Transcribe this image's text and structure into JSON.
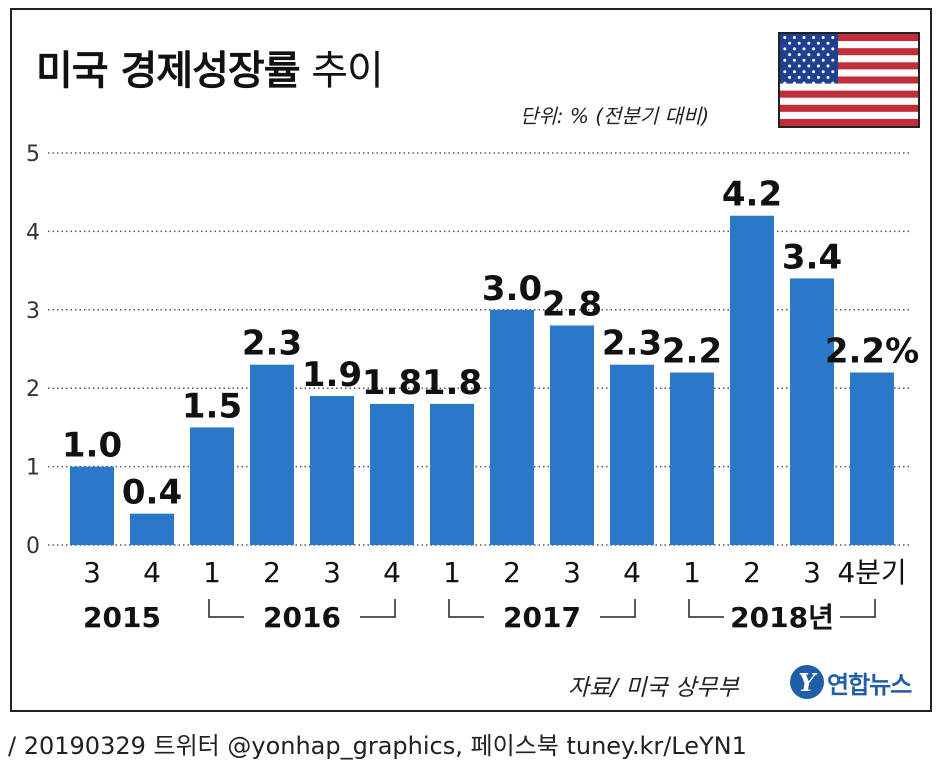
{
  "header": {
    "title_bold": "미국 경제성장률",
    "title_light": "추이",
    "unit": "단위: % (전분기 대비)"
  },
  "flag": {
    "name": "us-flag-icon",
    "red": "#bf2f3a",
    "white": "#ffffff",
    "blue": "#1f3f8f"
  },
  "chart_data": {
    "type": "bar",
    "title": "미국 경제성장률 추이",
    "ylabel": "단위: % (전분기 대비)",
    "ylim": [
      0,
      5
    ],
    "yticks": [
      "0",
      "1",
      "2",
      "3",
      "4",
      "5"
    ],
    "grid": true,
    "bar_color": "#2979c8",
    "categories": [
      "2015 3",
      "2015 4",
      "2016 1",
      "2016 2",
      "2016 3",
      "2016 4",
      "2017 1",
      "2017 2",
      "2017 3",
      "2017 4",
      "2018 1",
      "2018 2",
      "2018 3",
      "2018 4분기"
    ],
    "tick_labels": [
      "3",
      "4",
      "1",
      "2",
      "3",
      "4",
      "1",
      "2",
      "3",
      "4",
      "1",
      "2",
      "3",
      "4분기"
    ],
    "values": [
      1.0,
      0.4,
      1.5,
      2.3,
      1.9,
      1.8,
      1.8,
      3.0,
      2.8,
      2.3,
      2.2,
      4.2,
      3.4,
      2.2
    ],
    "value_labels": [
      "1.0",
      "0.4",
      "1.5",
      "2.3",
      "1.9",
      "1.8",
      "1.8",
      "3.0",
      "2.8",
      "2.3",
      "2.2",
      "4.2",
      "3.4",
      "2.2%"
    ],
    "year_groups": [
      {
        "label": "2015",
        "start": 0,
        "end": 1,
        "bracket": false
      },
      {
        "label": "2016",
        "start": 2,
        "end": 5,
        "bracket": true
      },
      {
        "label": "2017",
        "start": 6,
        "end": 9,
        "bracket": true
      },
      {
        "label": "2018년",
        "start": 10,
        "end": 13,
        "bracket": true
      }
    ]
  },
  "source": "자료/ 미국 상무부",
  "logo": {
    "mark": "Y",
    "text": "연합뉴스"
  },
  "footer": "/ 20190329 트위터 @yonhap_graphics, 페이스북 tuney.kr/LeYN1"
}
